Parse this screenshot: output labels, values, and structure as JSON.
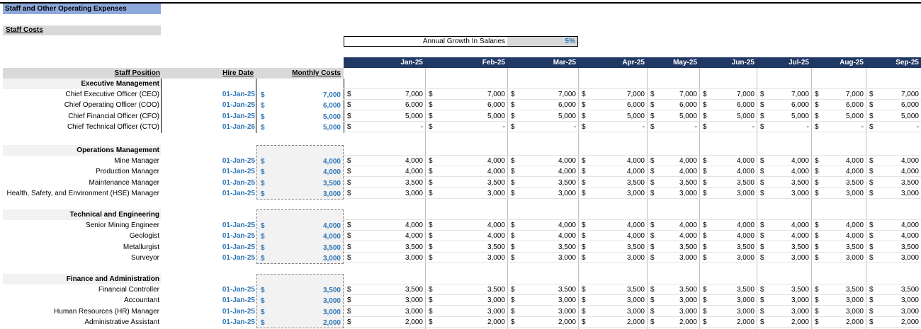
{
  "sheet": {
    "title": "Staff and Other Operating Expenses",
    "staff_costs_label": "Staff Costs",
    "growth_label": "Annual Growth In Salaries",
    "growth_value": "5%"
  },
  "months": [
    "Jan-25",
    "Feb-25",
    "Mar-25",
    "Apr-25",
    "May-25",
    "Jun-25",
    "Jul-25",
    "Aug-25",
    "Sep-25"
  ],
  "headers": {
    "position": "Staff Position",
    "hire_date": "Hire Date",
    "monthly_costs": "Monthly Costs"
  },
  "currency_symbol": "$",
  "sections": [
    {
      "name": "Executive Management",
      "rows": [
        {
          "position": "Chief Executive Officer (CEO)",
          "hire": "01-Jan-25",
          "cost": "7,000",
          "values": [
            "7,000",
            "7,000",
            "7,000",
            "7,000",
            "7,000",
            "7,000",
            "7,000",
            "7,000",
            "7,000"
          ]
        },
        {
          "position": "Chief Operating Officer (COO)",
          "hire": "01-Jan-25",
          "cost": "6,000",
          "values": [
            "6,000",
            "6,000",
            "6,000",
            "6,000",
            "6,000",
            "6,000",
            "6,000",
            "6,000",
            "6,000"
          ]
        },
        {
          "position": "Chief Financial Officer (CFO)",
          "hire": "01-Jan-25",
          "cost": "5,000",
          "values": [
            "5,000",
            "5,000",
            "5,000",
            "5,000",
            "5,000",
            "5,000",
            "5,000",
            "5,000",
            "5,000"
          ]
        },
        {
          "position": "Chief Technical Officer (CTO)",
          "hire": "01-Jan-26",
          "cost": "5,000",
          "values": [
            "-",
            "-",
            "-",
            "-",
            "-",
            "-",
            "-",
            "-",
            "-"
          ]
        }
      ]
    },
    {
      "name": "Operations Management",
      "rows": [
        {
          "position": "Mine Manager",
          "hire": "01-Jan-25",
          "cost": "4,000",
          "values": [
            "4,000",
            "4,000",
            "4,000",
            "4,000",
            "4,000",
            "4,000",
            "4,000",
            "4,000",
            "4,000"
          ]
        },
        {
          "position": "Production Manager",
          "hire": "01-Jan-25",
          "cost": "4,000",
          "values": [
            "4,000",
            "4,000",
            "4,000",
            "4,000",
            "4,000",
            "4,000",
            "4,000",
            "4,000",
            "4,000"
          ]
        },
        {
          "position": "Maintenance Manager",
          "hire": "01-Jan-25",
          "cost": "3,500",
          "values": [
            "3,500",
            "3,500",
            "3,500",
            "3,500",
            "3,500",
            "3,500",
            "3,500",
            "3,500",
            "3,500"
          ]
        },
        {
          "position": "Health, Safety, and Environment (HSE) Manager",
          "hire": "01-Jan-25",
          "cost": "3,000",
          "values": [
            "3,000",
            "3,000",
            "3,000",
            "3,000",
            "3,000",
            "3,000",
            "3,000",
            "3,000",
            "3,000"
          ]
        }
      ]
    },
    {
      "name": "Technical and Engineering",
      "rows": [
        {
          "position": "Senior Mining Engineer",
          "hire": "01-Jan-25",
          "cost": "4,000",
          "values": [
            "4,000",
            "4,000",
            "4,000",
            "4,000",
            "4,000",
            "4,000",
            "4,000",
            "4,000",
            "4,000"
          ]
        },
        {
          "position": "Geologist",
          "hire": "01-Jan-25",
          "cost": "4,000",
          "values": [
            "4,000",
            "4,000",
            "4,000",
            "4,000",
            "4,000",
            "4,000",
            "4,000",
            "4,000",
            "4,000"
          ]
        },
        {
          "position": "Metallurgist",
          "hire": "01-Jan-25",
          "cost": "3,500",
          "values": [
            "3,500",
            "3,500",
            "3,500",
            "3,500",
            "3,500",
            "3,500",
            "3,500",
            "3,500",
            "3,500"
          ]
        },
        {
          "position": "Surveyor",
          "hire": "01-Jan-25",
          "cost": "3,000",
          "values": [
            "3,000",
            "3,000",
            "3,000",
            "3,000",
            "3,000",
            "3,000",
            "3,000",
            "3,000",
            "3,000"
          ]
        }
      ]
    },
    {
      "name": "Finance and Administration",
      "rows": [
        {
          "position": "Financial Controller",
          "hire": "01-Jan-25",
          "cost": "3,500",
          "values": [
            "3,500",
            "3,500",
            "3,500",
            "3,500",
            "3,500",
            "3,500",
            "3,500",
            "3,500",
            "3,500"
          ]
        },
        {
          "position": "Accountant",
          "hire": "01-Jan-25",
          "cost": "3,000",
          "values": [
            "3,000",
            "3,000",
            "3,000",
            "3,000",
            "3,000",
            "3,000",
            "3,000",
            "3,000",
            "3,000"
          ]
        },
        {
          "position": "Human Resources (HR) Manager",
          "hire": "01-Jan-25",
          "cost": "3,000",
          "values": [
            "3,000",
            "3,000",
            "3,000",
            "3,000",
            "3,000",
            "3,000",
            "3,000",
            "3,000",
            "3,000"
          ]
        },
        {
          "position": "Administrative Assistant",
          "hire": "01-Jan-25",
          "cost": "2,000",
          "values": [
            "2,000",
            "2,000",
            "2,000",
            "2,000",
            "2,000",
            "2,000",
            "2,000",
            "2,000",
            "2,000"
          ]
        }
      ]
    }
  ]
}
